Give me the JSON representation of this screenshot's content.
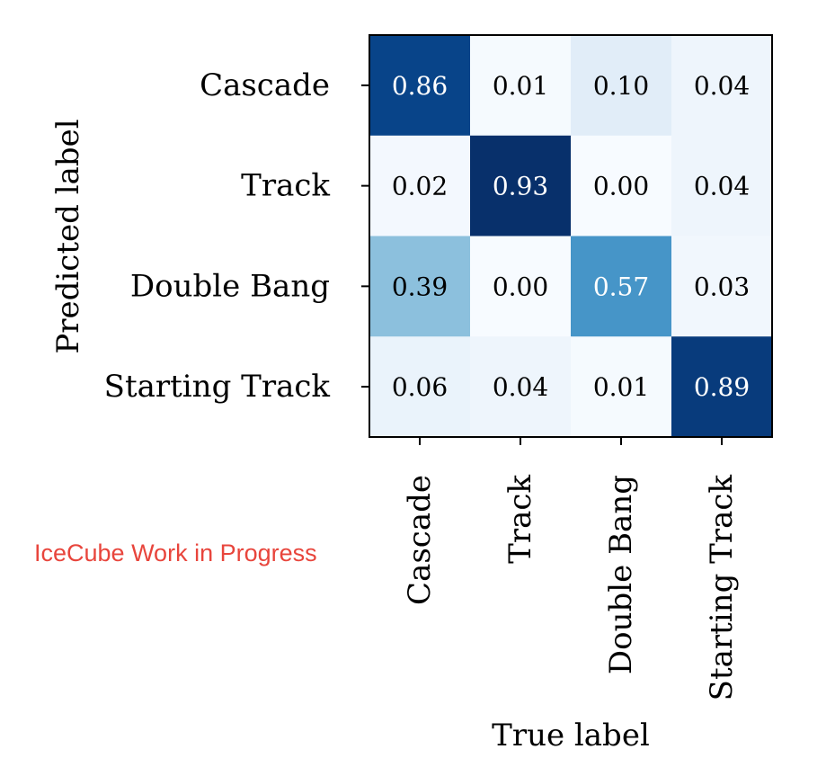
{
  "chart_data": {
    "type": "heatmap",
    "xlabel": "True label",
    "ylabel": "Predicted label",
    "x_categories": [
      "Cascade",
      "Track",
      "Double Bang",
      "Starting Track"
    ],
    "y_categories": [
      "Cascade",
      "Track",
      "Double Bang",
      "Starting Track"
    ],
    "values": [
      [
        0.86,
        0.01,
        0.1,
        0.04
      ],
      [
        0.02,
        0.93,
        0.0,
        0.04
      ],
      [
        0.39,
        0.0,
        0.57,
        0.03
      ],
      [
        0.06,
        0.04,
        0.01,
        0.89
      ]
    ],
    "colormap": "Blues",
    "value_format": "2-decimal"
  },
  "watermark": "IceCube Work in Progress",
  "colors": {
    "watermark": "#e8453c",
    "cell_text_light": "#ffffff",
    "cell_text_dark": "#000000",
    "frame": "#000000"
  }
}
